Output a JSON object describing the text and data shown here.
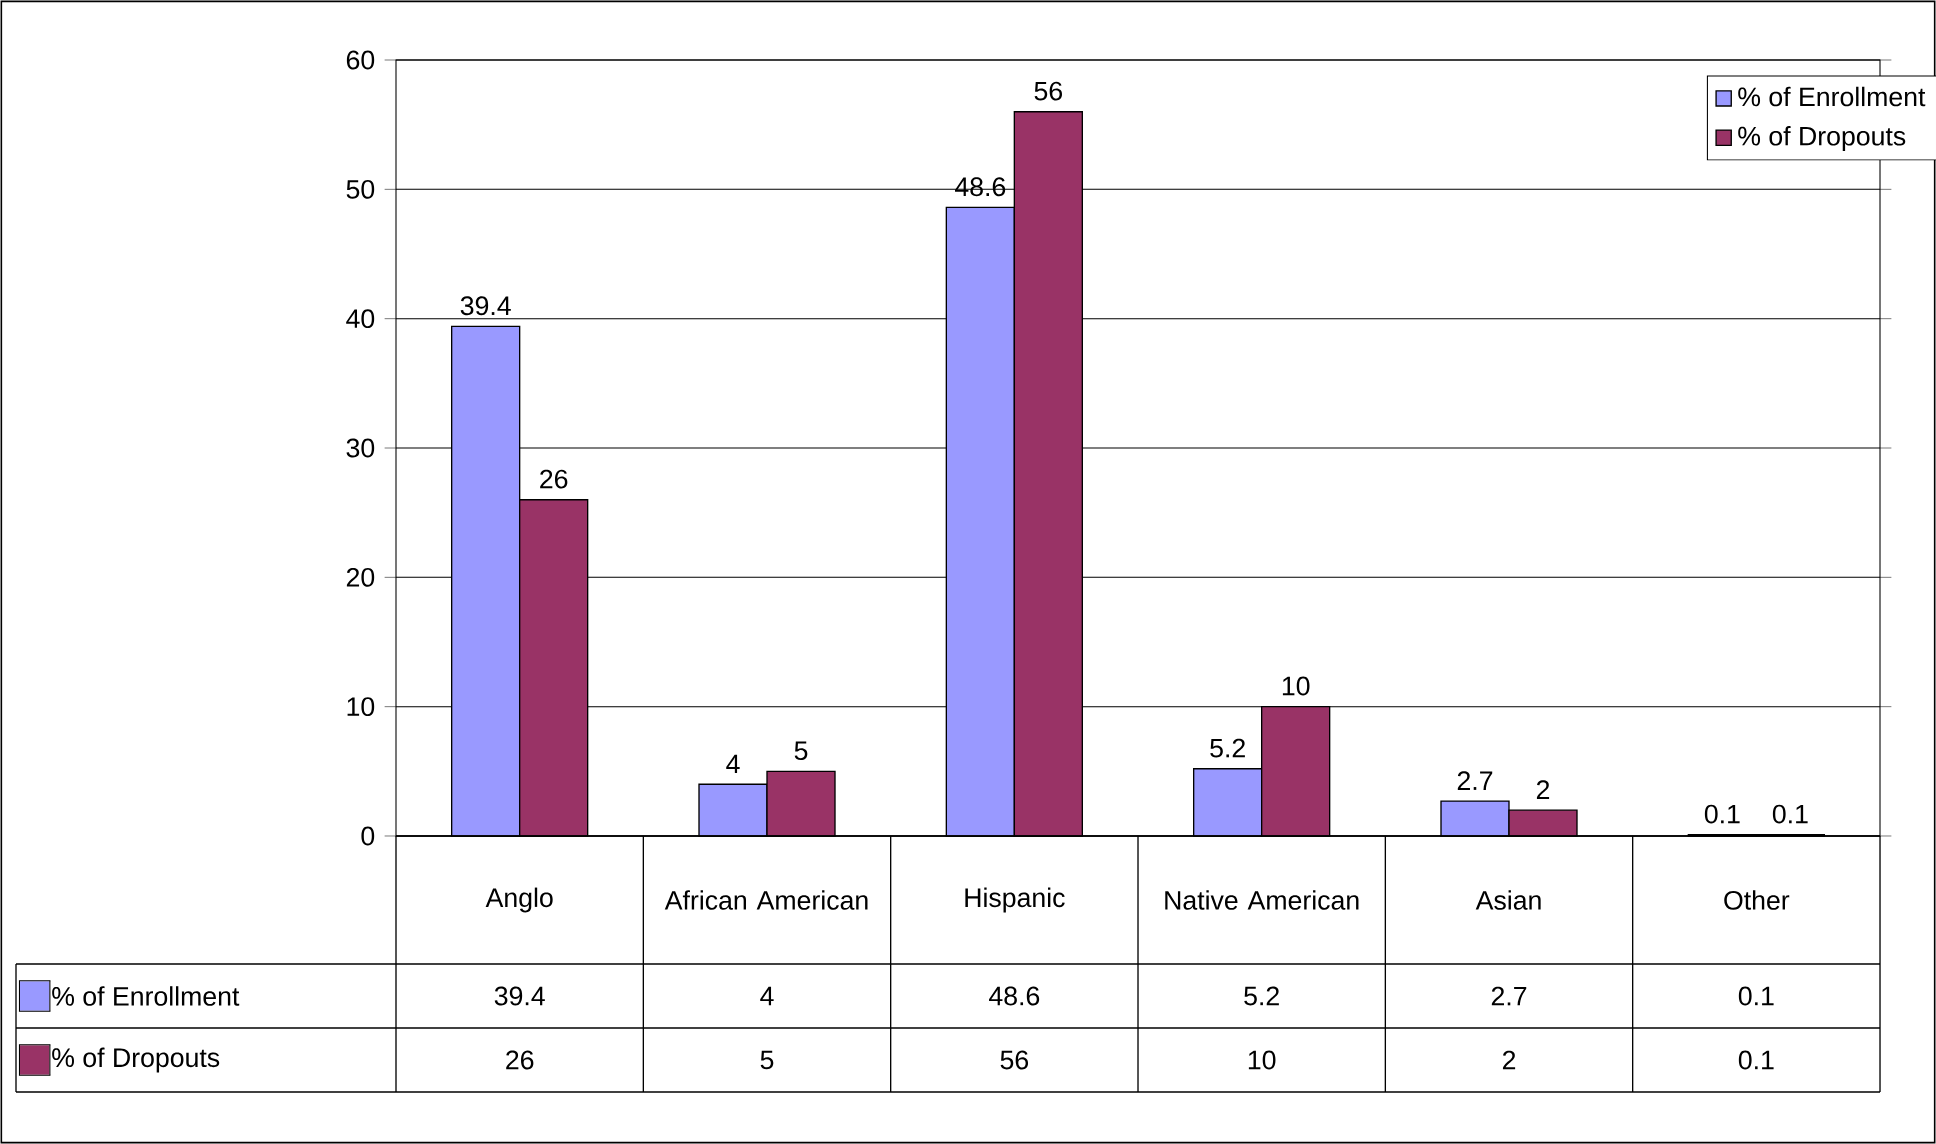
{
  "chart_data": {
    "type": "bar",
    "categories": [
      "Anglo",
      "African American",
      "Hispanic",
      "Native American",
      "Asian",
      "Other"
    ],
    "series": [
      {
        "name": "% of Enrollment",
        "color": "#9999ff",
        "values": [
          39.4,
          4,
          48.6,
          5.2,
          2.7,
          0.1
        ],
        "value_labels": [
          "39.4",
          "4",
          "48.6",
          "5.2",
          "2.7",
          "0.1"
        ]
      },
      {
        "name": "% of Dropouts",
        "color": "#993366",
        "values": [
          26,
          5,
          56,
          10,
          2,
          0.1
        ],
        "value_labels": [
          "26",
          "5",
          "56",
          "10",
          "2",
          "0.1"
        ]
      }
    ],
    "ylim": [
      0,
      60
    ],
    "yticks": [
      0,
      10,
      20,
      30,
      40,
      50,
      60
    ],
    "grid": "y",
    "legend": "top right",
    "data_labels": true
  }
}
